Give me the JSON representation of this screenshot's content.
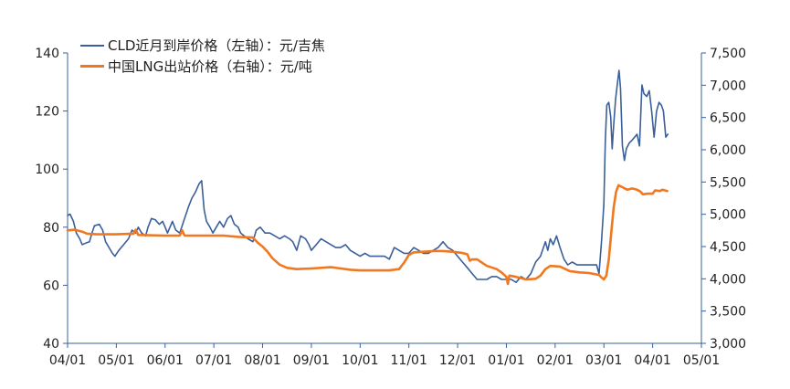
{
  "chart_data": {
    "type": "line",
    "title": "",
    "xlabel": "",
    "x_ticks": [
      "04/01",
      "05/01",
      "06/01",
      "07/01",
      "08/01",
      "09/01",
      "10/01",
      "11/01",
      "12/01",
      "01/01",
      "02/01",
      "03/01",
      "04/01",
      "05/01"
    ],
    "left_axis": {
      "ylim": [
        40,
        140
      ],
      "ticks": [
        40,
        60,
        80,
        100,
        120,
        140
      ],
      "labels": [
        "40",
        "60",
        "80",
        "100",
        "120",
        "140"
      ]
    },
    "right_axis": {
      "ylim": [
        3000,
        7500
      ],
      "ticks": [
        3000,
        3500,
        4000,
        4500,
        5000,
        5500,
        6000,
        6500,
        7000,
        7500
      ],
      "labels": [
        "3,000",
        "3,500",
        "4,000",
        "4,500",
        "5,000",
        "5,500",
        "6,000",
        "6,500",
        "7,000",
        "7,500"
      ]
    },
    "legend_position": "top-left",
    "series": [
      {
        "name": "CLD近月到岸价格（左轴）：元/吉焦",
        "axis": "left",
        "color": "#3a5f9a",
        "points": [
          [
            0.0,
            84
          ],
          [
            0.05,
            84.5
          ],
          [
            0.12,
            82
          ],
          [
            0.18,
            78
          ],
          [
            0.25,
            76
          ],
          [
            0.3,
            74
          ],
          [
            0.37,
            74.5
          ],
          [
            0.45,
            75
          ],
          [
            0.5,
            78
          ],
          [
            0.55,
            80.5
          ],
          [
            0.65,
            81
          ],
          [
            0.72,
            79
          ],
          [
            0.78,
            75
          ],
          [
            0.85,
            73
          ],
          [
            0.92,
            71
          ],
          [
            0.97,
            70
          ],
          [
            1.05,
            72
          ],
          [
            1.15,
            74
          ],
          [
            1.25,
            76
          ],
          [
            1.32,
            79
          ],
          [
            1.4,
            78
          ],
          [
            1.45,
            80
          ],
          [
            1.52,
            78
          ],
          [
            1.6,
            77
          ],
          [
            1.65,
            80
          ],
          [
            1.72,
            83
          ],
          [
            1.8,
            82.5
          ],
          [
            1.88,
            81
          ],
          [
            1.95,
            82
          ],
          [
            2.0,
            80
          ],
          [
            2.05,
            78
          ],
          [
            2.1,
            80
          ],
          [
            2.15,
            82
          ],
          [
            2.22,
            79
          ],
          [
            2.3,
            78
          ],
          [
            2.4,
            83
          ],
          [
            2.48,
            87
          ],
          [
            2.55,
            90
          ],
          [
            2.62,
            92
          ],
          [
            2.7,
            95
          ],
          [
            2.75,
            96
          ],
          [
            2.8,
            86
          ],
          [
            2.85,
            82
          ],
          [
            2.92,
            80
          ],
          [
            2.98,
            78
          ],
          [
            3.05,
            80
          ],
          [
            3.12,
            82
          ],
          [
            3.2,
            80
          ],
          [
            3.28,
            83
          ],
          [
            3.35,
            84
          ],
          [
            3.42,
            81
          ],
          [
            3.5,
            80
          ],
          [
            3.55,
            78
          ],
          [
            3.62,
            77
          ],
          [
            3.7,
            76
          ],
          [
            3.8,
            75
          ],
          [
            3.87,
            79
          ],
          [
            3.95,
            80
          ],
          [
            4.05,
            78
          ],
          [
            4.15,
            78
          ],
          [
            4.25,
            77
          ],
          [
            4.35,
            76
          ],
          [
            4.45,
            77
          ],
          [
            4.55,
            76
          ],
          [
            4.62,
            75
          ],
          [
            4.7,
            72
          ],
          [
            4.78,
            77
          ],
          [
            4.88,
            76
          ],
          [
            4.95,
            74
          ],
          [
            5.0,
            72
          ],
          [
            5.1,
            74
          ],
          [
            5.2,
            76
          ],
          [
            5.3,
            75
          ],
          [
            5.4,
            74
          ],
          [
            5.5,
            73
          ],
          [
            5.6,
            73
          ],
          [
            5.7,
            74
          ],
          [
            5.8,
            72
          ],
          [
            5.9,
            71
          ],
          [
            6.0,
            70
          ],
          [
            6.1,
            71
          ],
          [
            6.2,
            70
          ],
          [
            6.3,
            70
          ],
          [
            6.4,
            70
          ],
          [
            6.5,
            70
          ],
          [
            6.6,
            69
          ],
          [
            6.7,
            73
          ],
          [
            6.8,
            72
          ],
          [
            6.9,
            71
          ],
          [
            7.0,
            71
          ],
          [
            7.1,
            73
          ],
          [
            7.2,
            72
          ],
          [
            7.3,
            71
          ],
          [
            7.4,
            71
          ],
          [
            7.5,
            72
          ],
          [
            7.6,
            73
          ],
          [
            7.7,
            75
          ],
          [
            7.8,
            73
          ],
          [
            7.9,
            72
          ],
          [
            8.0,
            70
          ],
          [
            8.1,
            68
          ],
          [
            8.2,
            66
          ],
          [
            8.3,
            64
          ],
          [
            8.4,
            62
          ],
          [
            8.5,
            62
          ],
          [
            8.6,
            62
          ],
          [
            8.7,
            63
          ],
          [
            8.8,
            63
          ],
          [
            8.9,
            62
          ],
          [
            9.0,
            62
          ],
          [
            9.1,
            62
          ],
          [
            9.2,
            61
          ],
          [
            9.3,
            63
          ],
          [
            9.4,
            62
          ],
          [
            9.5,
            64
          ],
          [
            9.6,
            68
          ],
          [
            9.7,
            70
          ],
          [
            9.8,
            75
          ],
          [
            9.85,
            72
          ],
          [
            9.9,
            76
          ],
          [
            9.96,
            74
          ],
          [
            10.03,
            77
          ],
          [
            10.1,
            73
          ],
          [
            10.18,
            69
          ],
          [
            10.26,
            67
          ],
          [
            10.35,
            68
          ],
          [
            10.45,
            67
          ],
          [
            10.55,
            67
          ],
          [
            10.65,
            67
          ],
          [
            10.75,
            67
          ],
          [
            10.85,
            67
          ],
          [
            10.9,
            64
          ],
          [
            10.95,
            75
          ],
          [
            11.0,
            88
          ],
          [
            11.03,
            110
          ],
          [
            11.06,
            122
          ],
          [
            11.1,
            123
          ],
          [
            11.14,
            118
          ],
          [
            11.17,
            107
          ],
          [
            11.2,
            115
          ],
          [
            11.24,
            124
          ],
          [
            11.28,
            130
          ],
          [
            11.31,
            134
          ],
          [
            11.34,
            128
          ],
          [
            11.38,
            108
          ],
          [
            11.42,
            103
          ],
          [
            11.46,
            107
          ],
          [
            11.52,
            109
          ],
          [
            11.58,
            110
          ],
          [
            11.63,
            111
          ],
          [
            11.68,
            112
          ],
          [
            11.73,
            108
          ],
          [
            11.78,
            129
          ],
          [
            11.82,
            126
          ],
          [
            11.88,
            125
          ],
          [
            11.93,
            127
          ],
          [
            11.98,
            120
          ],
          [
            12.03,
            111
          ],
          [
            12.08,
            120
          ],
          [
            12.13,
            123
          ],
          [
            12.18,
            122
          ],
          [
            12.22,
            120
          ],
          [
            12.27,
            111
          ],
          [
            12.31,
            112
          ]
        ]
      },
      {
        "name": "中国LNG出站价格（右轴）：元/吨",
        "axis": "right",
        "color": "#f07820",
        "points": [
          [
            0.0,
            4750
          ],
          [
            0.15,
            4760
          ],
          [
            0.3,
            4730
          ],
          [
            0.4,
            4700
          ],
          [
            0.6,
            4690
          ],
          [
            1.0,
            4690
          ],
          [
            1.35,
            4700
          ],
          [
            1.4,
            4760
          ],
          [
            1.45,
            4680
          ],
          [
            2.0,
            4670
          ],
          [
            2.3,
            4670
          ],
          [
            2.35,
            4750
          ],
          [
            2.4,
            4670
          ],
          [
            2.8,
            4670
          ],
          [
            3.2,
            4670
          ],
          [
            3.5,
            4650
          ],
          [
            3.8,
            4640
          ],
          [
            3.9,
            4560
          ],
          [
            4.0,
            4500
          ],
          [
            4.1,
            4420
          ],
          [
            4.2,
            4320
          ],
          [
            4.35,
            4220
          ],
          [
            4.5,
            4170
          ],
          [
            4.7,
            4150
          ],
          [
            5.0,
            4160
          ],
          [
            5.2,
            4170
          ],
          [
            5.4,
            4180
          ],
          [
            5.6,
            4160
          ],
          [
            5.8,
            4140
          ],
          [
            6.0,
            4130
          ],
          [
            6.3,
            4130
          ],
          [
            6.6,
            4130
          ],
          [
            6.8,
            4150
          ],
          [
            6.9,
            4250
          ],
          [
            7.0,
            4370
          ],
          [
            7.1,
            4410
          ],
          [
            7.3,
            4420
          ],
          [
            7.5,
            4430
          ],
          [
            7.7,
            4430
          ],
          [
            7.9,
            4420
          ],
          [
            8.1,
            4400
          ],
          [
            8.2,
            4380
          ],
          [
            8.25,
            4280
          ],
          [
            8.3,
            4300
          ],
          [
            8.4,
            4300
          ],
          [
            8.6,
            4200
          ],
          [
            8.8,
            4150
          ],
          [
            8.9,
            4100
          ],
          [
            9.0,
            4030
          ],
          [
            9.03,
            3920
          ],
          [
            9.06,
            4050
          ],
          [
            9.2,
            4030
          ],
          [
            9.4,
            3990
          ],
          [
            9.6,
            4000
          ],
          [
            9.7,
            4050
          ],
          [
            9.8,
            4150
          ],
          [
            9.9,
            4200
          ],
          [
            10.1,
            4190
          ],
          [
            10.3,
            4120
          ],
          [
            10.5,
            4100
          ],
          [
            10.7,
            4090
          ],
          [
            10.9,
            4060
          ],
          [
            10.95,
            4020
          ],
          [
            11.0,
            3990
          ],
          [
            11.05,
            4050
          ],
          [
            11.1,
            4300
          ],
          [
            11.15,
            4700
          ],
          [
            11.2,
            5100
          ],
          [
            11.25,
            5350
          ],
          [
            11.3,
            5450
          ],
          [
            11.38,
            5420
          ],
          [
            11.48,
            5380
          ],
          [
            11.58,
            5400
          ],
          [
            11.68,
            5380
          ],
          [
            11.75,
            5350
          ],
          [
            11.8,
            5310
          ],
          [
            11.9,
            5320
          ],
          [
            12.0,
            5320
          ],
          [
            12.05,
            5370
          ],
          [
            12.15,
            5360
          ],
          [
            12.2,
            5380
          ],
          [
            12.25,
            5370
          ],
          [
            12.3,
            5360
          ]
        ]
      }
    ]
  }
}
